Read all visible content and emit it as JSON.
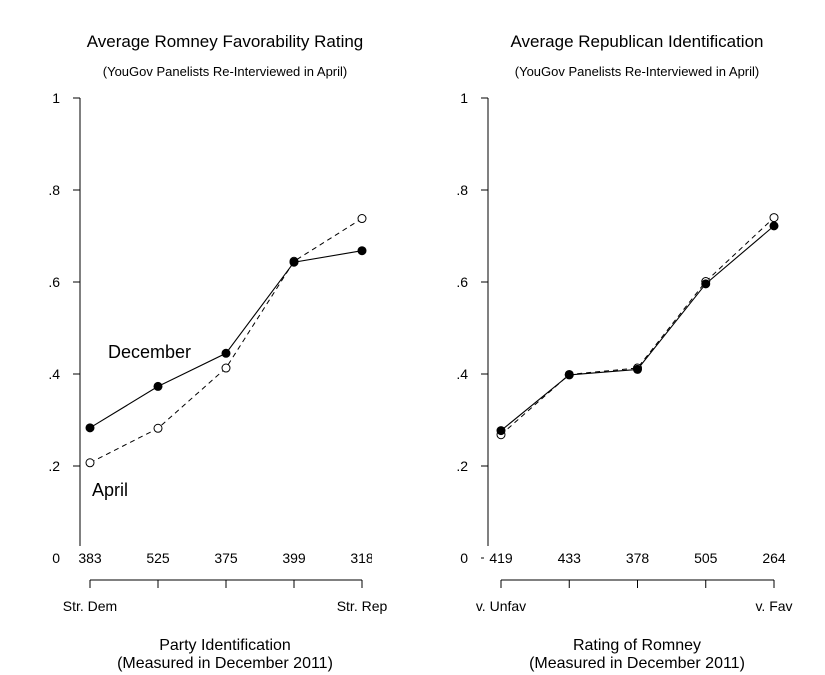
{
  "chart_data": [
    {
      "type": "line",
      "title": "Average Romney Favorability Rating",
      "subtitle": "(YouGov Panelists Re-Interviewed in April)",
      "xlabel": "Party Identification",
      "xlabel2": "(Measured in December 2011)",
      "ylabel": "",
      "ylim": [
        0,
        1
      ],
      "yticks": [
        0,
        0.2,
        0.4,
        0.6,
        0.8,
        1
      ],
      "ytick_labels": [
        "0",
        ".2",
        ".4",
        ".6",
        ".8",
        "1"
      ],
      "x": [
        1,
        2,
        3,
        4,
        5
      ],
      "counts": [
        "383",
        "525",
        "375",
        "399",
        "318"
      ],
      "end_labels": [
        "Str. Dem",
        "Str. Rep"
      ],
      "series": [
        {
          "name": "December",
          "marker": "filled",
          "style": "solid",
          "values": [
            0.283,
            0.373,
            0.445,
            0.643,
            0.668
          ]
        },
        {
          "name": "April",
          "marker": "open",
          "style": "dashed",
          "values": [
            0.207,
            0.282,
            0.413,
            0.645,
            0.738
          ]
        }
      ],
      "grid": false,
      "legend": "inline"
    },
    {
      "type": "line",
      "title": "Average Republican Identification",
      "subtitle": "(YouGov Panelists Re-Interviewed in April)",
      "xlabel": "Rating of Romney",
      "xlabel2": "(Measured in December 2011)",
      "ylabel": "",
      "ylim": [
        0,
        1
      ],
      "yticks": [
        0,
        0.2,
        0.4,
        0.6,
        0.8,
        1
      ],
      "ytick_labels": [
        "0",
        ".2",
        ".4",
        ".6",
        ".8",
        "1"
      ],
      "x": [
        1,
        2,
        3,
        4,
        5
      ],
      "counts": [
        "419",
        "433",
        "378",
        "505",
        "264"
      ],
      "end_labels": [
        "v. Unfav",
        "v. Fav"
      ],
      "series": [
        {
          "marker": "filled",
          "style": "solid",
          "values": [
            0.277,
            0.398,
            0.41,
            0.596,
            0.722
          ]
        },
        {
          "marker": "open",
          "style": "dashed",
          "values": [
            0.268,
            0.399,
            0.413,
            0.601,
            0.74
          ]
        }
      ],
      "grid": false,
      "legend": "none"
    }
  ]
}
